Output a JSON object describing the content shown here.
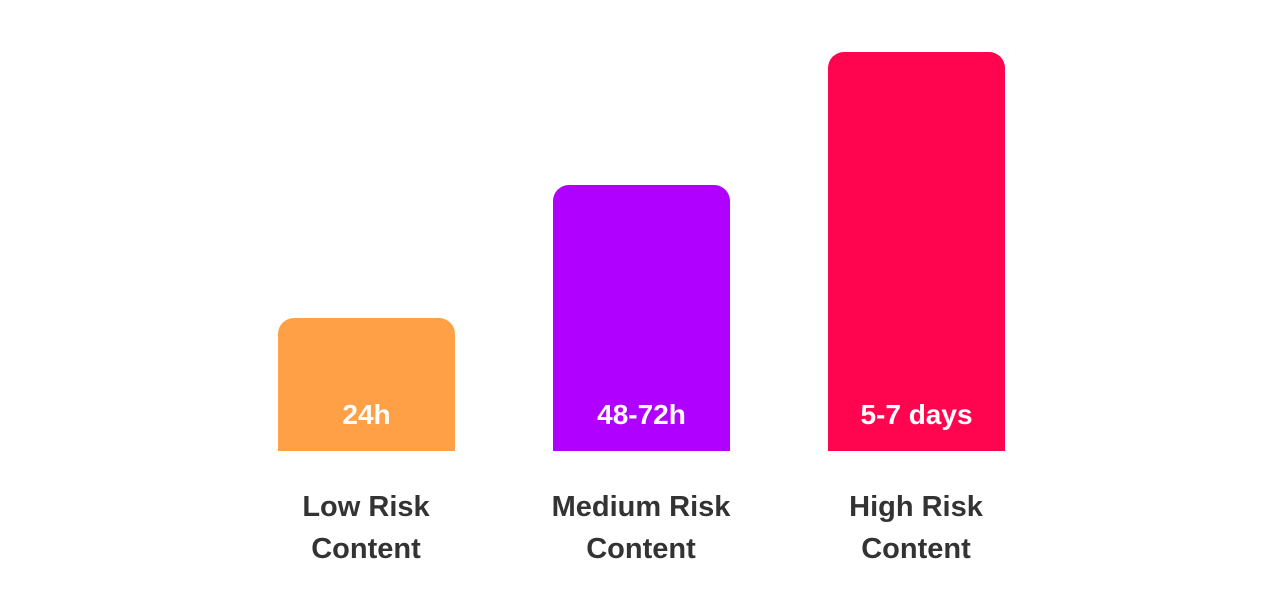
{
  "bars": [
    {
      "value_label": "24h",
      "label": "Low Risk Content"
    },
    {
      "value_label": "48-72h",
      "label": "Medium Risk Content"
    },
    {
      "value_label": "5-7 days",
      "label": "High Risk Content"
    }
  ]
}
